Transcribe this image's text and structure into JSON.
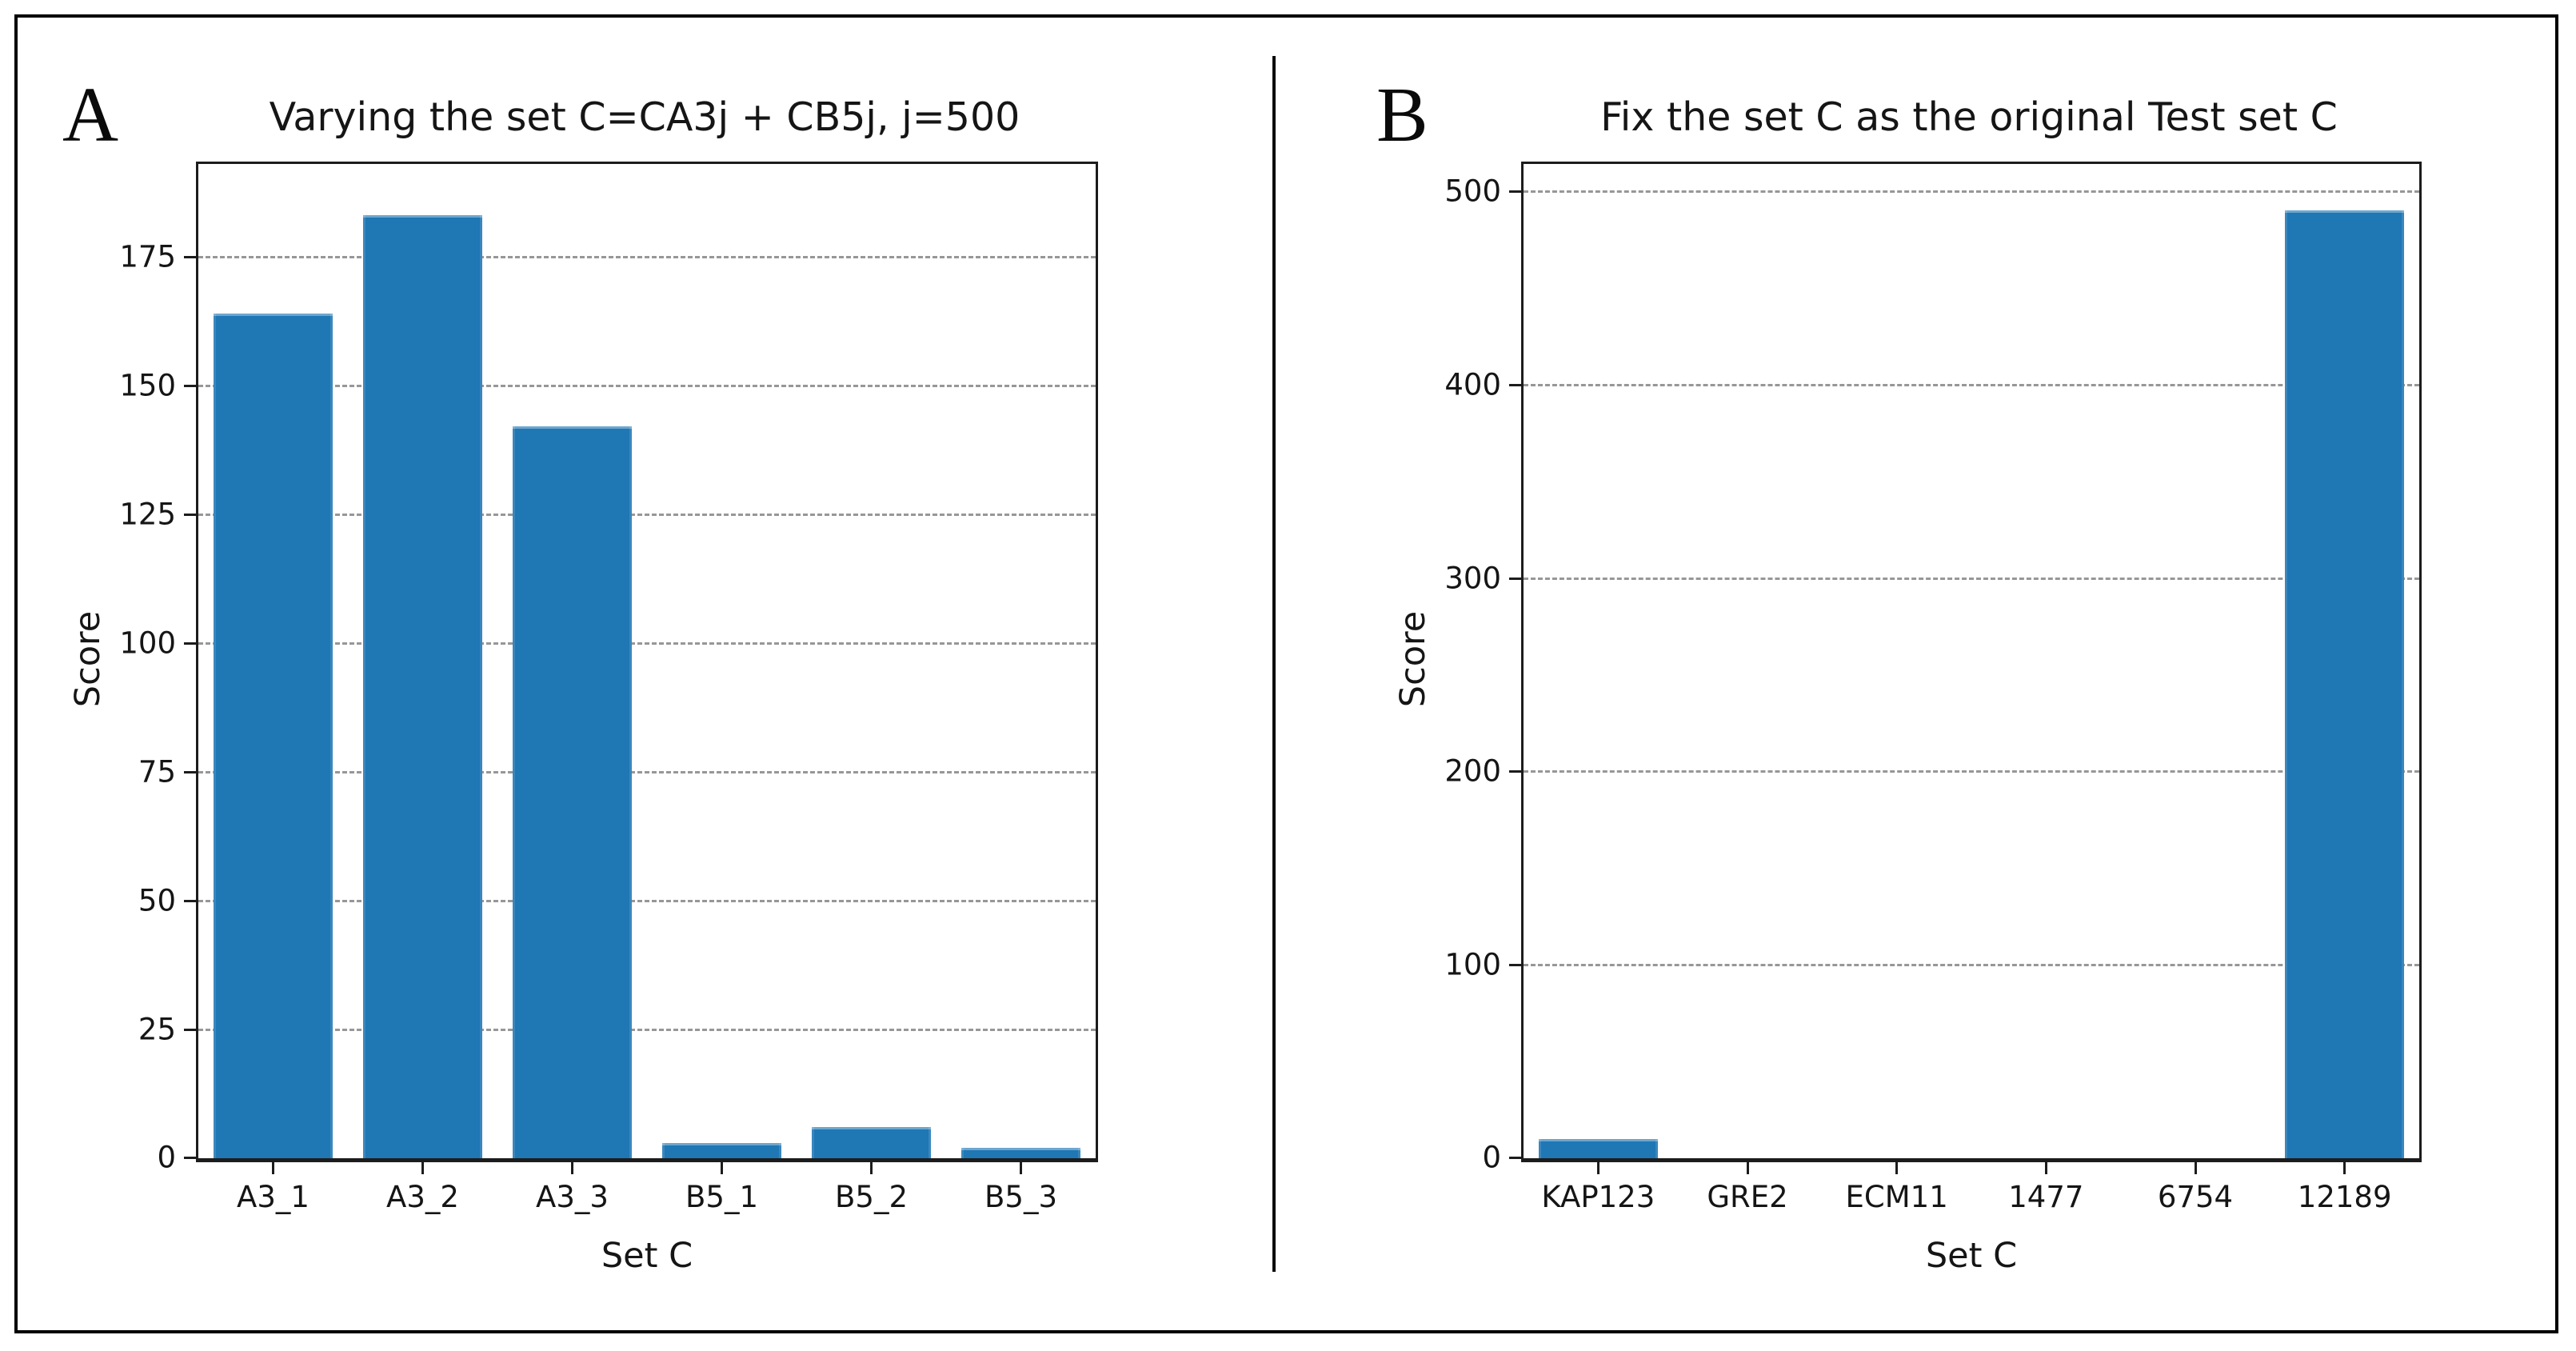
{
  "figure": {
    "background_color": "#ffffff",
    "frame_color": "#000000",
    "bar_color": "#1f77b4",
    "grid_color": "#979797",
    "spine_color": "#1c1c1c",
    "text_color": "#151515"
  },
  "chart_data": [
    {
      "type": "bar",
      "panel_letter": "A",
      "title": "Varying the set C=CA3j + CB5j, j=500",
      "xlabel": "Set C",
      "ylabel": "Score",
      "categories": [
        "A3_1",
        "A3_2",
        "A3_3",
        "B5_1",
        "B5_2",
        "B5_3"
      ],
      "values": [
        164,
        183,
        142,
        3,
        6,
        2
      ],
      "yticks": [
        0,
        25,
        50,
        75,
        100,
        125,
        150,
        175
      ],
      "ylim": [
        0,
        193
      ],
      "grid": "horizontal dashed, below bars",
      "legend_position": "none"
    },
    {
      "type": "bar",
      "panel_letter": "B",
      "title": "Fix the set C as the original Test set C",
      "xlabel": "Set C",
      "ylabel": "Score",
      "categories": [
        "KAP123",
        "GRE2",
        "ECM11",
        "1477",
        "6754",
        "12189"
      ],
      "values": [
        10,
        0,
        0,
        0,
        0,
        490
      ],
      "yticks": [
        0,
        100,
        200,
        300,
        400,
        500
      ],
      "ylim": [
        0,
        514
      ],
      "grid": "horizontal dashed, below bars",
      "legend_position": "none"
    }
  ]
}
